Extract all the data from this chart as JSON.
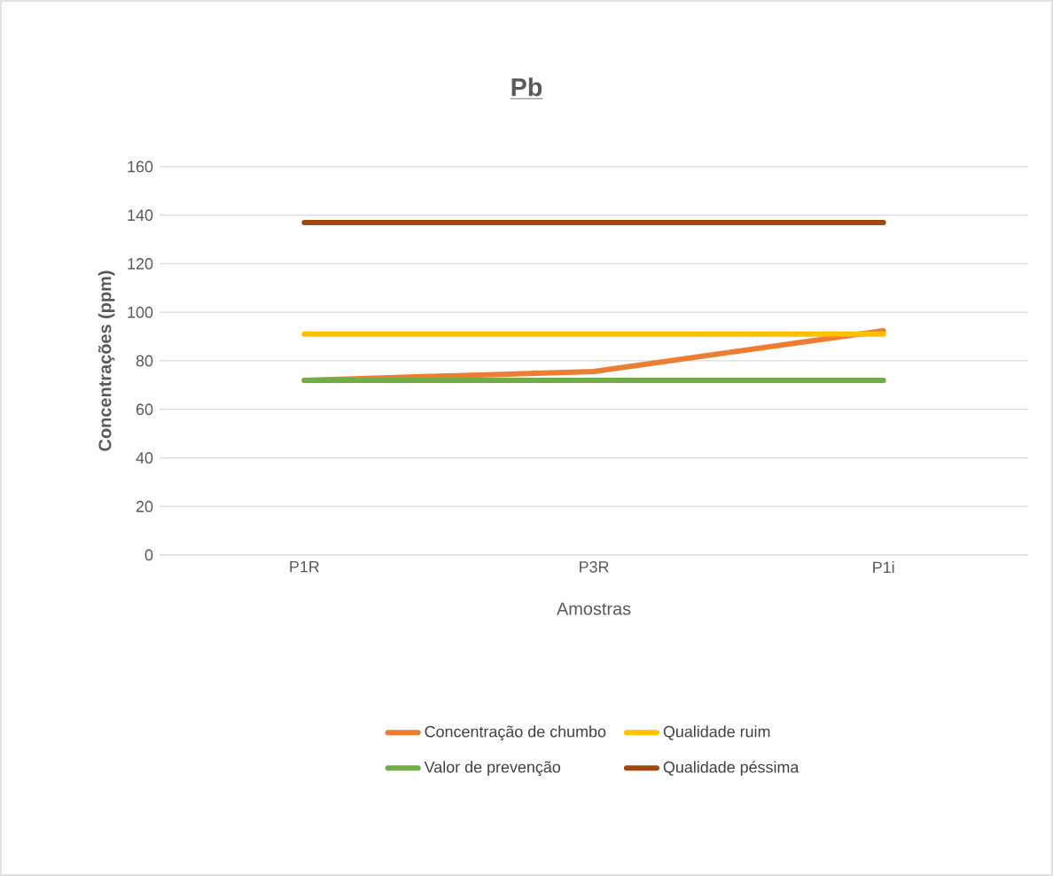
{
  "chart_data": {
    "type": "line",
    "title": "Pb",
    "xlabel": "Amostras",
    "ylabel": "Concentrações (ppm)",
    "categories": [
      "P1R",
      "P3R",
      "P1i"
    ],
    "series": [
      {
        "name": "Concentração de chumbo",
        "color": "#ed7d31",
        "values": [
          72,
          75.6,
          92.4
        ]
      },
      {
        "name": "Qualidade ruim",
        "color": "#ffc000",
        "values": [
          91,
          91,
          91
        ]
      },
      {
        "name": "Valor de prevenção",
        "color": "#70ad47",
        "values": [
          72,
          72,
          72
        ]
      },
      {
        "name": "Qualidade péssima",
        "color": "#9e480e",
        "values": [
          137,
          137,
          137
        ]
      }
    ],
    "ylim": [
      0,
      160
    ],
    "yticks": [
      0,
      20,
      40,
      60,
      80,
      100,
      120,
      140,
      160
    ],
    "grid": "y",
    "legend": "bottom"
  }
}
